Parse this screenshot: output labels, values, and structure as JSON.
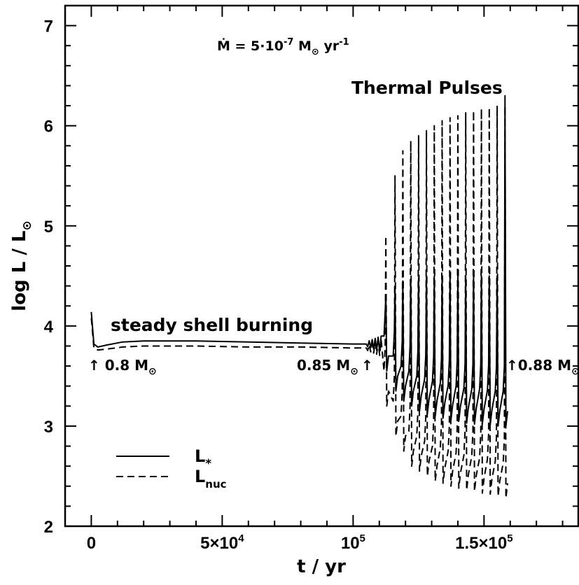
{
  "chart_data": {
    "type": "line",
    "xlabel": "t / yr",
    "ylabel": "log L / L",
    "ylabel_sub": "⊙",
    "xlim": [
      -10000,
      186000
    ],
    "ylim": [
      2,
      7.2
    ],
    "x_ticks": [
      {
        "value": 0,
        "label": "0"
      },
      {
        "value": 50000,
        "label": "5×10",
        "sup": "4"
      },
      {
        "value": 100000,
        "label": "10",
        "sup": "5"
      },
      {
        "value": 150000,
        "label": "1.5×10",
        "sup": "5"
      }
    ],
    "y_ticks": [
      {
        "value": 2,
        "label": "2"
      },
      {
        "value": 3,
        "label": "3"
      },
      {
        "value": 4,
        "label": "4"
      },
      {
        "value": 5,
        "label": "5"
      },
      {
        "value": 6,
        "label": "6"
      },
      {
        "value": 7,
        "label": "7"
      }
    ],
    "annotations": {
      "mdot": "Ṁ = 5·10",
      "mdot_exp": "-7",
      "mdot_unit": " M",
      "mdot_unit_sub": "⊙",
      "mdot_tail": " yr",
      "mdot_tail_exp": "-1",
      "thermal_pulses": "Thermal Pulses",
      "steady_shell": "steady shell burning",
      "mass_08": "↑ 0.8 M",
      "mass_085": "0.85 M",
      "mass_085_arrow": "↑",
      "mass_088": "↑0.88 M",
      "mass_sub": "⊙"
    },
    "series": [
      {
        "name": "L*",
        "legend_main": "L",
        "legend_sub": "*",
        "style": "solid",
        "baseline": [
          [
            0,
            4.14
          ],
          [
            1000,
            3.82
          ],
          [
            2500,
            3.79
          ],
          [
            6000,
            3.81
          ],
          [
            12000,
            3.84
          ],
          [
            20000,
            3.85
          ],
          [
            40000,
            3.85
          ],
          [
            60000,
            3.84
          ],
          [
            80000,
            3.83
          ],
          [
            100000,
            3.82
          ],
          [
            105000,
            3.82
          ]
        ],
        "pulses": {
          "times": [
            112500,
            116000,
            119000,
            122000,
            125000,
            128000,
            131000,
            134000,
            137000,
            140000,
            143000,
            146000,
            149000,
            152000,
            155000,
            158000
          ],
          "peaks": [
            4.3,
            4.4,
            4.45,
            4.47,
            4.48,
            4.5,
            4.5,
            4.5,
            4.5,
            4.5,
            4.5,
            4.5,
            4.5,
            4.5,
            4.5,
            6.3
          ],
          "troughs": [
            3.55,
            3.35,
            3.25,
            3.2,
            3.15,
            3.12,
            3.1,
            3.08,
            3.06,
            3.05,
            3.03,
            3.02,
            3.02,
            3.01,
            3.0,
            3.0
          ]
        }
      },
      {
        "name": "Lnuc",
        "legend_main": "L",
        "legend_sub": "nuc",
        "style": "dashed",
        "baseline": [
          [
            0,
            4.08
          ],
          [
            1000,
            3.78
          ],
          [
            2500,
            3.76
          ],
          [
            6000,
            3.77
          ],
          [
            12000,
            3.79
          ],
          [
            20000,
            3.8
          ],
          [
            40000,
            3.8
          ],
          [
            60000,
            3.79
          ],
          [
            80000,
            3.79
          ],
          [
            100000,
            3.78
          ],
          [
            105000,
            3.78
          ]
        ],
        "pulses": {
          "times": [
            112500,
            116000,
            119000,
            122000,
            125000,
            128000,
            131000,
            134000,
            137000,
            140000,
            143000,
            146000,
            149000,
            152000,
            155000,
            158000
          ],
          "peaks": [
            4.9,
            5.5,
            5.75,
            5.85,
            5.9,
            5.95,
            6.0,
            6.05,
            6.08,
            6.1,
            6.13,
            6.15,
            6.17,
            6.18,
            6.2,
            6.2
          ],
          "troughs": [
            3.2,
            2.9,
            2.75,
            2.6,
            2.55,
            2.5,
            2.45,
            2.43,
            2.4,
            2.38,
            2.36,
            2.35,
            2.33,
            2.32,
            2.3,
            2.28
          ]
        }
      }
    ]
  }
}
